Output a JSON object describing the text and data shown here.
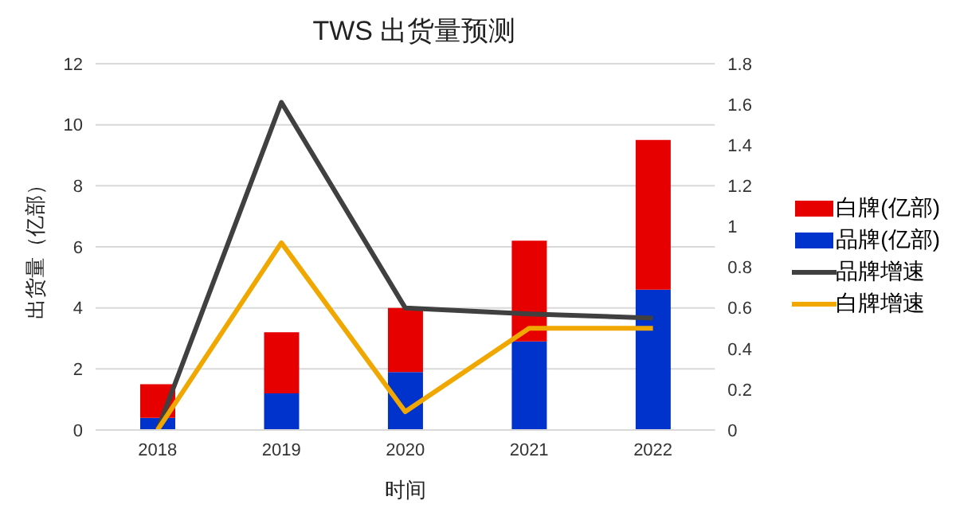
{
  "chart_data": {
    "type": "bar",
    "title": "TWS 出货量预测",
    "xlabel": "时间",
    "ylabel": "出货量（亿部）",
    "categories": [
      "2018",
      "2019",
      "2020",
      "2021",
      "2022"
    ],
    "stacked": true,
    "series": [
      {
        "name": "品牌(亿部)",
        "color": "#0033cc",
        "values": [
          0.4,
          1.2,
          1.9,
          2.9,
          4.6
        ]
      },
      {
        "name": "白牌(亿部)",
        "color": "#e60000",
        "values": [
          1.1,
          2.0,
          2.1,
          3.3,
          4.9
        ]
      },
      {
        "name": "品牌增速",
        "type": "line",
        "axis": "y2",
        "color": "#404040",
        "values": [
          0,
          1.61,
          0.6,
          0.57,
          0.55
        ]
      },
      {
        "name": "白牌增速",
        "type": "line",
        "axis": "y2",
        "color": "#f0a800",
        "values": [
          0,
          0.92,
          0.09,
          0.5,
          0.5
        ]
      }
    ],
    "ylim": [
      0,
      12
    ],
    "yticks": [
      0,
      2,
      4,
      6,
      8,
      10,
      12
    ],
    "y2lim": [
      0,
      1.8
    ],
    "y2ticks": [
      0,
      0.2,
      0.4,
      0.6,
      0.8,
      1,
      1.2,
      1.4,
      1.6,
      1.8
    ],
    "grid": "y",
    "legend": "right",
    "marker": "none",
    "line_style": "solid"
  }
}
